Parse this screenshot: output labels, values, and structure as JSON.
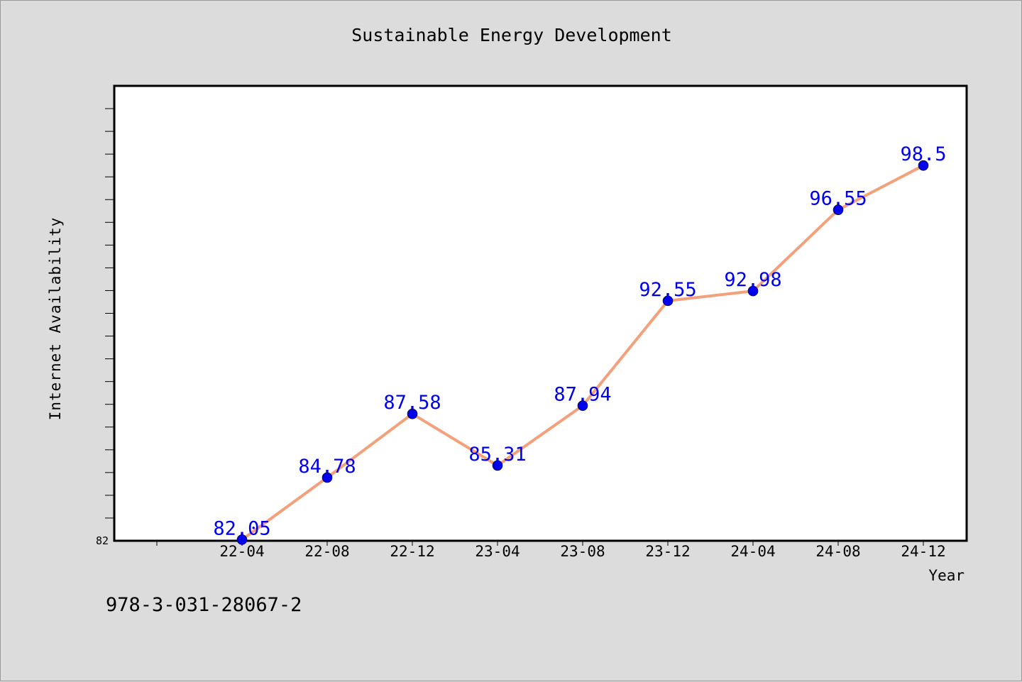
{
  "chart_data": {
    "type": "line",
    "title": "Sustainable Energy Development",
    "xlabel": "Year",
    "ylabel": "Internet Availability",
    "categories": [
      "22-04",
      "22-08",
      "22-12",
      "23-04",
      "23-08",
      "23-12",
      "24-04",
      "24-08",
      "24-12"
    ],
    "series": [
      {
        "values": [
          82.05,
          84.78,
          87.58,
          85.31,
          87.94,
          92.55,
          92.98,
          96.55,
          98.5
        ],
        "line_color": "#f4a07a",
        "marker_color": "#0000ee"
      }
    ],
    "data_labels": [
      "82.05",
      "84.78",
      "87.58",
      "85.31",
      "87.94",
      "92.55",
      "92.98",
      "96.55",
      "98.5"
    ],
    "y_tick_label": "82",
    "ylim": [
      82,
      102
    ],
    "grid": false,
    "label_color": "#0000ee"
  },
  "footer": {
    "code": "978-3-031-28067-2"
  }
}
